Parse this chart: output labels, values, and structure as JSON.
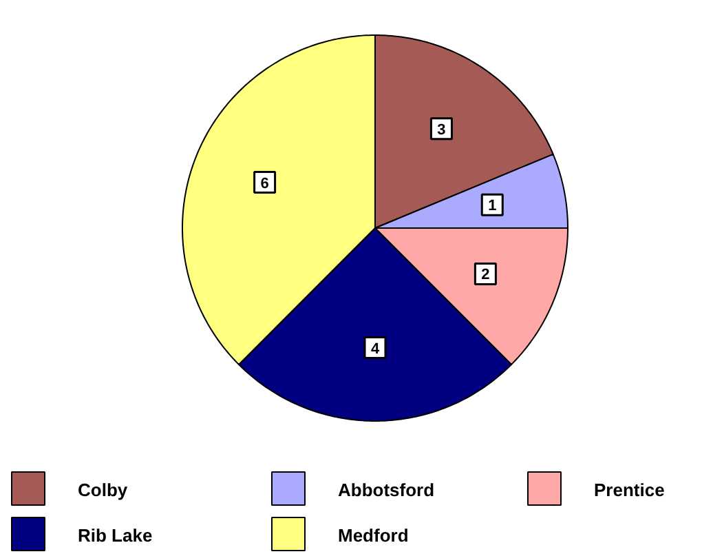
{
  "chart_data": {
    "type": "pie",
    "categories": [
      "Colby",
      "Abbotsford",
      "Prentice",
      "Rib Lake",
      "Medford"
    ],
    "values": [
      3,
      1,
      2,
      4,
      6
    ],
    "colors": [
      "#a65a55",
      "#aaaaff",
      "#ffa8a8",
      "#000080",
      "#ffff80"
    ],
    "data_labels": true,
    "legend": "bottom"
  }
}
